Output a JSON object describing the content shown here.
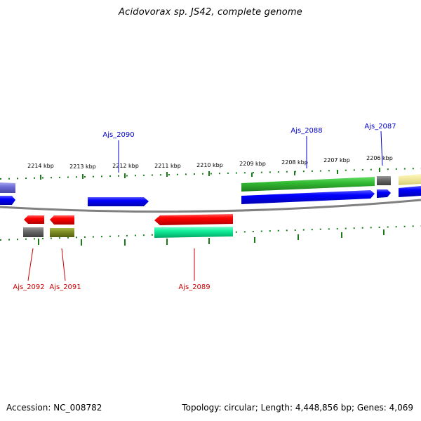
{
  "title": "Acidovorax sp. JS42, complete genome",
  "footer": {
    "accession": "Accession: NC_008782",
    "stats": "Topology: circular; Length: 4,448,856 bp; Genes: 4,069"
  },
  "colors": {
    "label_forward": "#0000cc",
    "label_reverse": "#cc0000",
    "tick": "#1a7a1a",
    "backbone": "#808080"
  },
  "kbp_labels": [
    "2214 kbp",
    "2213 kbp",
    "2212 kbp",
    "2211 kbp",
    "2210 kbp",
    "2209 kbp",
    "2208 kbp",
    "2207 kbp",
    "2206 kbp"
  ],
  "gene_labels": {
    "forward": [
      "Ajs_2090",
      "Ajs_2088",
      "Ajs_2087"
    ],
    "reverse": [
      "Ajs_2092",
      "Ajs_2091",
      "Ajs_2089"
    ]
  }
}
